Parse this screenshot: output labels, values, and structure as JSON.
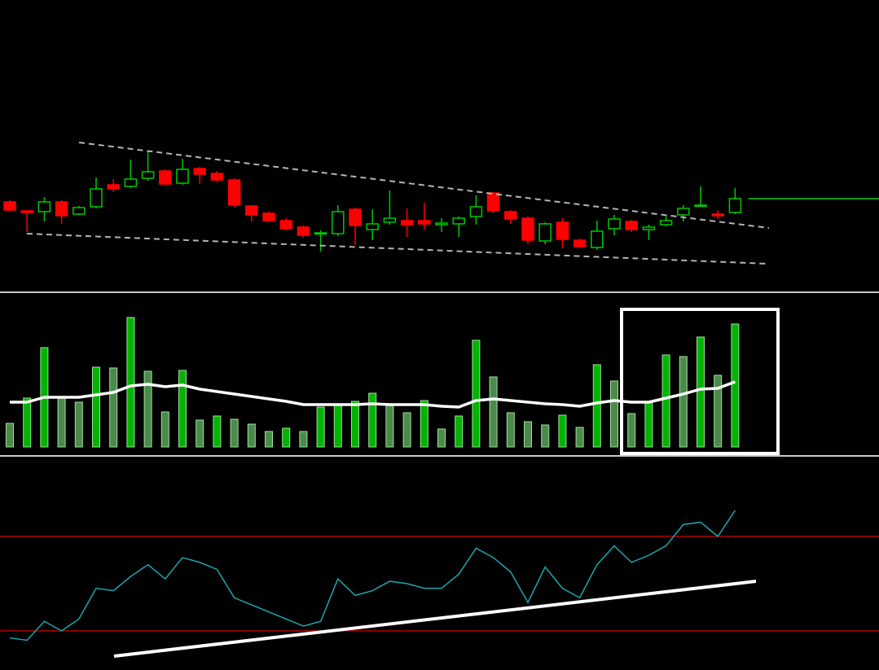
{
  "chart_data": [
    {
      "type": "candlestick",
      "open": [
        110,
        99,
        98,
        110,
        95,
        104,
        131,
        129,
        139,
        148,
        133,
        151,
        145,
        137,
        105,
        96,
        87,
        79,
        71,
        71,
        101,
        76,
        85,
        87,
        87,
        82,
        83,
        92,
        121,
        98,
        90,
        62,
        85,
        63,
        54,
        77,
        86,
        76,
        82,
        94,
        105,
        95,
        97
      ],
      "high": [
        112,
        99,
        116,
        112,
        105,
        140,
        138,
        162,
        172,
        150,
        163,
        153,
        148,
        139,
        106,
        98,
        90,
        81,
        75,
        106,
        103,
        101,
        124,
        102,
        109,
        90,
        92,
        118,
        122,
        100,
        92,
        85,
        90,
        65,
        87,
        94,
        88,
        82,
        93,
        106,
        129,
        100,
        127
      ],
      "low": [
        98,
        73,
        86,
        83,
        94,
        102,
        122,
        127,
        136,
        130,
        131,
        132,
        134,
        103,
        86,
        85,
        75,
        66,
        49,
        68,
        57,
        63,
        82,
        67,
        76,
        73,
        67,
        82,
        96,
        83,
        58,
        58,
        53,
        54,
        51,
        69,
        73,
        63,
        80,
        86,
        104,
        89,
        95
      ],
      "close": [
        100,
        97,
        110,
        93,
        103,
        126,
        126,
        138,
        147,
        132,
        150,
        144,
        137,
        106,
        94,
        87,
        77,
        69,
        72,
        98,
        81,
        83,
        90,
        82,
        83,
        84,
        90,
        104,
        99,
        89,
        63,
        83,
        64,
        55,
        74,
        89,
        76,
        79,
        87,
        102,
        106,
        93,
        114
      ],
      "ylim": [
        0,
        358
      ],
      "up_color": "#00c800",
      "down_color": "#ff0000"
    },
    {
      "type": "bar",
      "values": [
        29,
        60,
        122,
        60,
        55,
        98,
        97,
        159,
        93,
        43,
        94,
        33,
        38,
        34,
        28,
        19,
        23,
        19,
        49,
        52,
        56,
        66,
        52,
        42,
        57,
        22,
        38,
        131,
        86,
        42,
        31,
        27,
        39,
        24,
        101,
        81,
        41,
        55,
        113,
        111,
        135,
        88,
        151
      ],
      "colors": [
        "#4c8a4c",
        "#00b400",
        "#00b400",
        "#4c8a4c",
        "#4c8a4c",
        "#00b400",
        "#4c8a4c",
        "#00b400",
        "#4c8a4c",
        "#4c8a4c",
        "#00b400",
        "#4c8a4c",
        "#00b400",
        "#4c8a4c",
        "#4c8a4c",
        "#4c8a4c",
        "#00b400",
        "#4c8a4c",
        "#00b400",
        "#00b400",
        "#00b400",
        "#00b400",
        "#4c8a4c",
        "#4c8a4c",
        "#00b400",
        "#4c8a4c",
        "#00b400",
        "#00b400",
        "#4c8a4c",
        "#4c8a4c",
        "#4c8a4c",
        "#4c8a4c",
        "#00b400",
        "#4c8a4c",
        "#00b400",
        "#4c8a4c",
        "#4c8a4c",
        "#00b400",
        "#00b400",
        "#4c8a4c",
        "#00b400",
        "#4c8a4c",
        "#00b400"
      ],
      "line": {
        "color": "#ffffff",
        "values": [
          55,
          55,
          61,
          61,
          61,
          64,
          67,
          75,
          77,
          74,
          76,
          71,
          68,
          65,
          62,
          59,
          56,
          52,
          52,
          52,
          52,
          53,
          52,
          52,
          52,
          50,
          49,
          57,
          59,
          57,
          55,
          53,
          52,
          50,
          54,
          57,
          55,
          55,
          60,
          65,
          71,
          72,
          80
        ]
      },
      "ylim": [
        0,
        189
      ]
    },
    {
      "type": "line",
      "color": "#1aa7b0",
      "values": [
        27,
        26,
        34,
        30,
        35,
        48,
        47,
        53,
        58,
        52,
        61,
        59,
        56,
        44,
        41,
        38,
        35,
        32,
        34,
        52,
        45,
        47,
        51,
        50,
        48,
        48,
        54,
        65,
        61,
        55,
        42,
        57,
        48,
        44,
        58,
        66,
        59,
        62,
        66,
        75,
        76,
        70,
        81
      ],
      "ylim": [
        13.4,
        103.4
      ],
      "levels": [
        30,
        70
      ],
      "level_color": "#8b0000"
    }
  ]
}
